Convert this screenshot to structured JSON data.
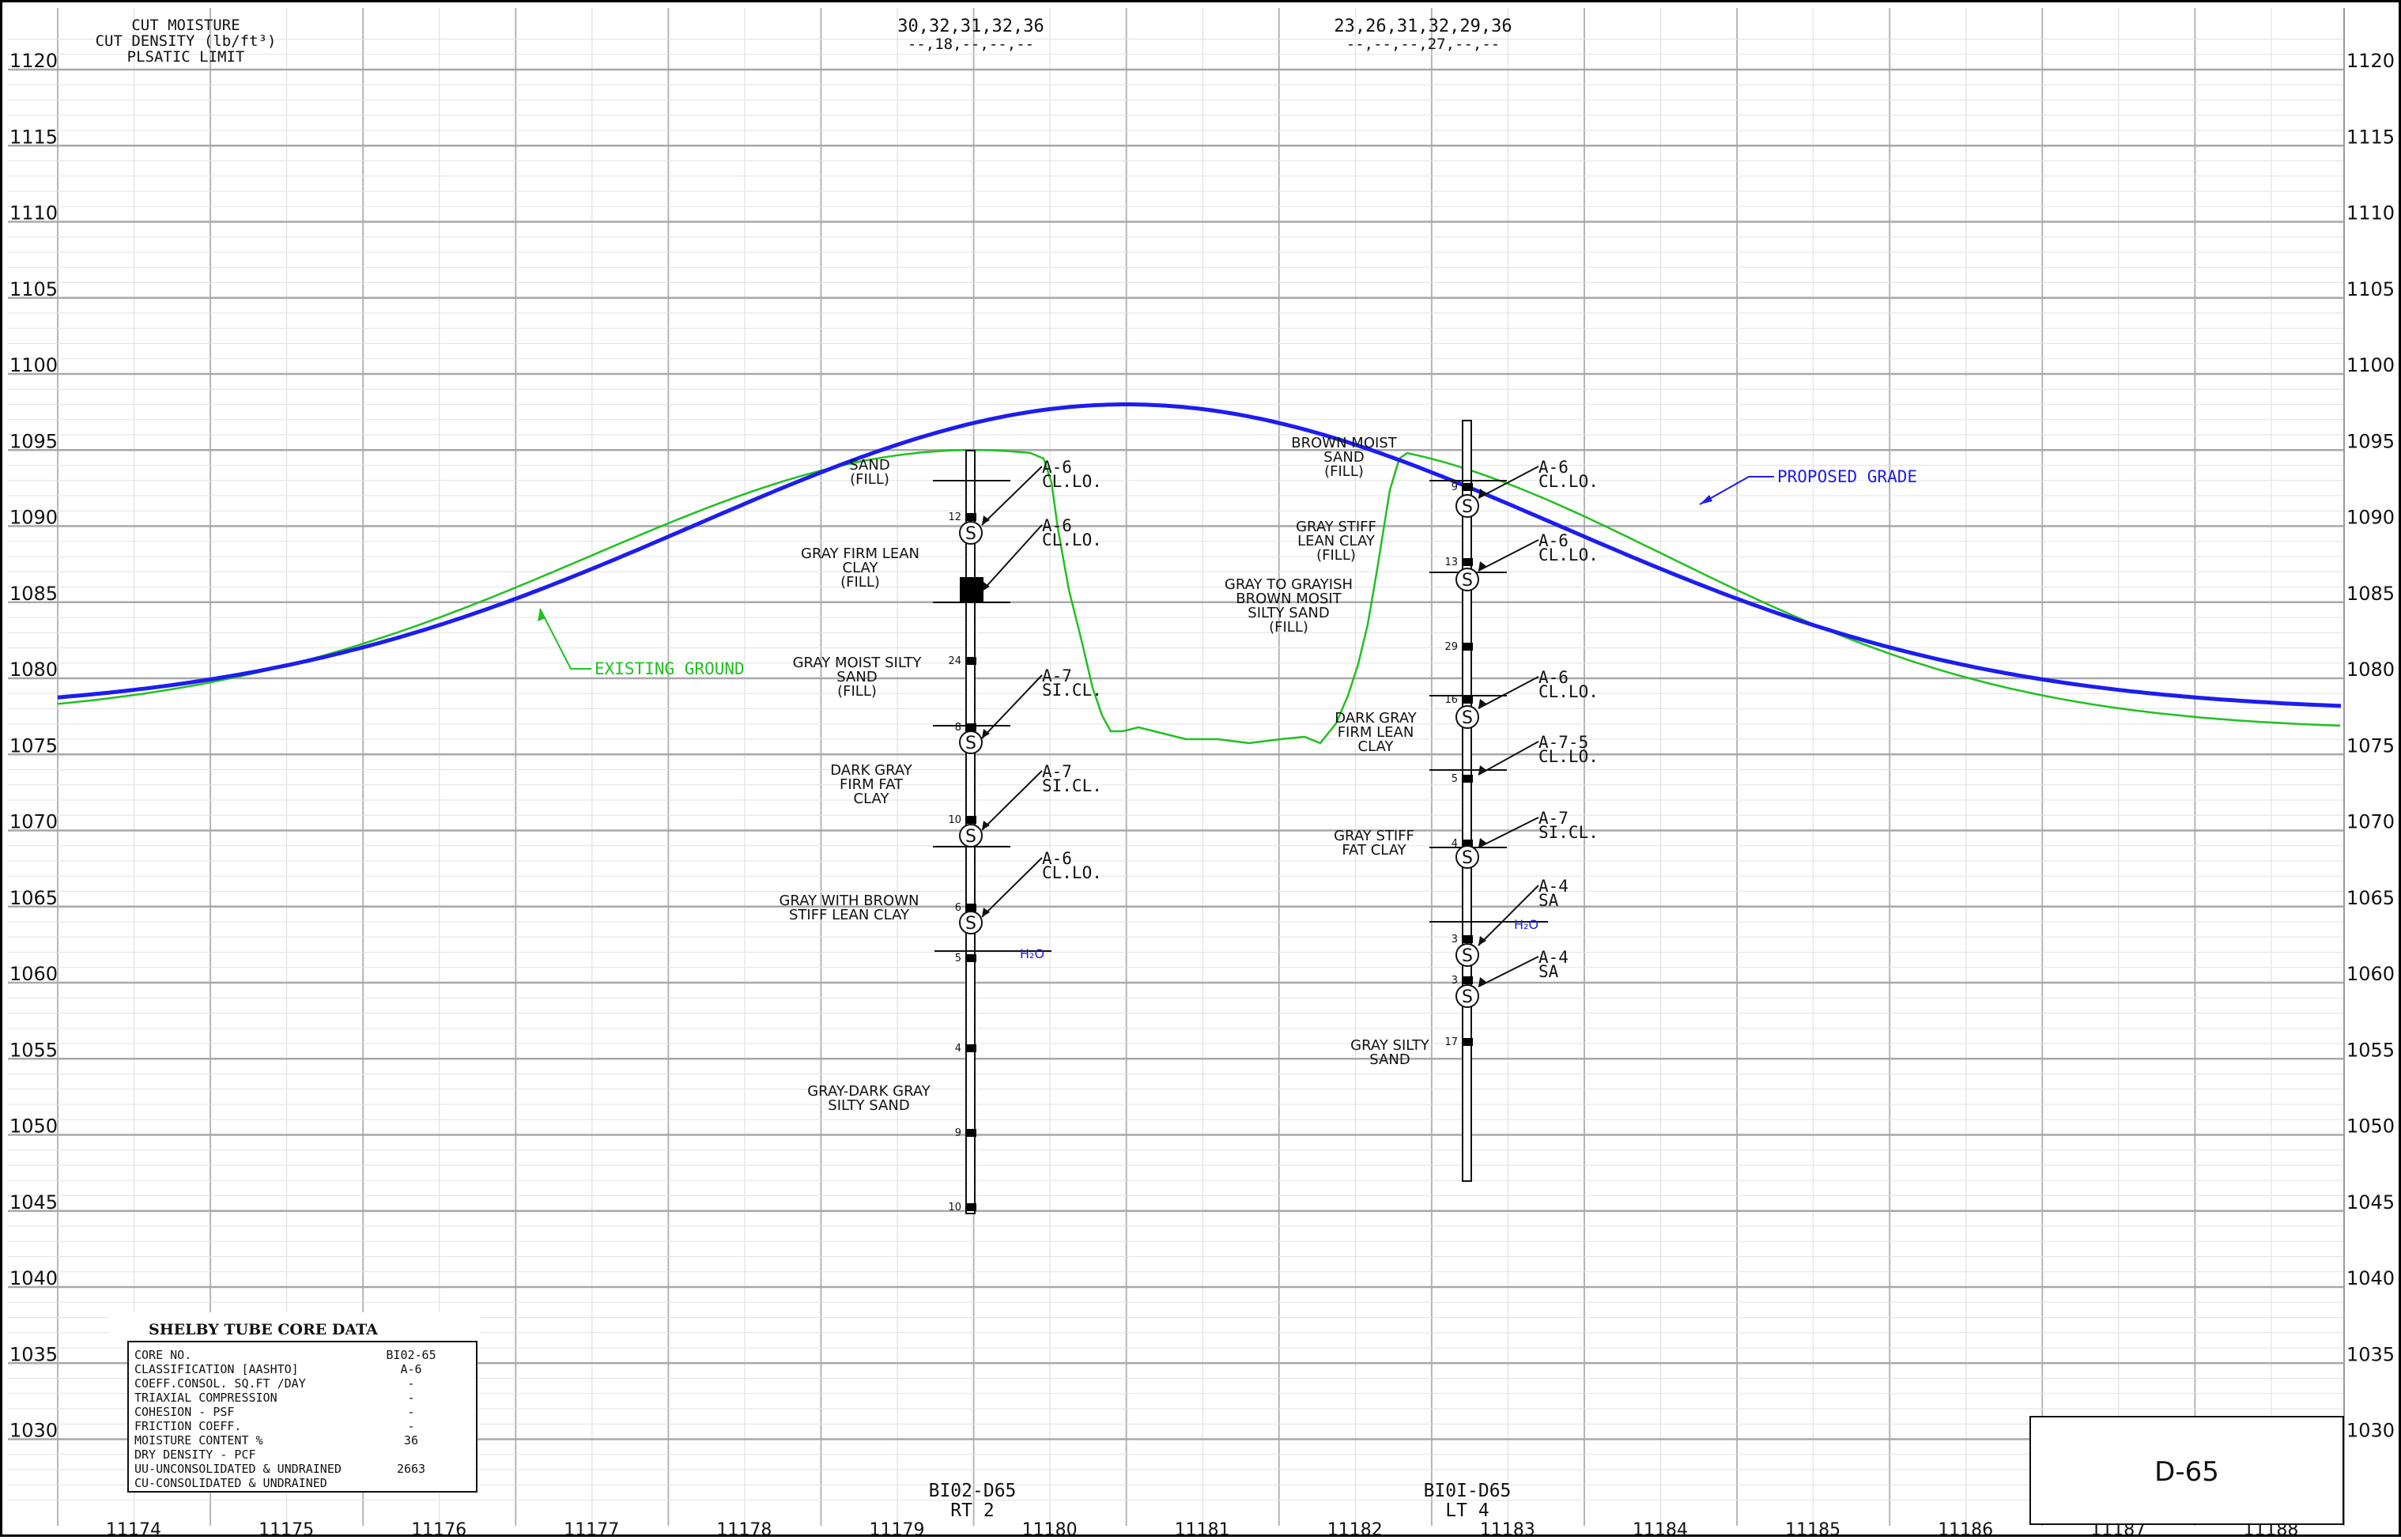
{
  "header": {
    "legend_lines": [
      "CUT MOISTURE",
      "CUT DENSITY (lb/ft³)",
      "PLSATIC LIMIT"
    ],
    "bore1_moisture": "30,32,31,32,36",
    "bore1_density": "--,18,--,--,--",
    "bore2_moisture": "23,26,31,32,29,36",
    "bore2_density": "--,--,--,27,--,--"
  },
  "axes": {
    "elevation_ticks": [
      1120,
      1115,
      1110,
      1105,
      1100,
      1095,
      1090,
      1085,
      1080,
      1075,
      1070,
      1065,
      1060,
      1055,
      1050,
      1045,
      1040,
      1035,
      1030
    ],
    "station_ticks": [
      11174,
      11175,
      11176,
      11177,
      11178,
      11179,
      11180,
      11181,
      11182,
      11183,
      11184,
      11185,
      11186,
      11187,
      11188
    ]
  },
  "lines": {
    "existing_ground_label": "EXISTING GROUND",
    "proposed_grade_label": "PROPOSED GRADE",
    "existing_color": "#20c020",
    "proposed_color": "#1d1df0"
  },
  "boring1": {
    "id": "BI02-D65",
    "offset": "RT 2",
    "blow_counts": [
      "12",
      "24",
      "8",
      "10",
      "6",
      "5",
      "4",
      "9",
      "10"
    ],
    "water_label": "H₂O",
    "layers": [
      {
        "lines": [
          "SAND",
          "(FILL)"
        ]
      },
      {
        "lines": [
          "GRAY FIRM LEAN",
          "CLAY",
          "(FILL)"
        ]
      },
      {
        "lines": [
          "GRAY MOIST SILTY",
          "SAND",
          "(FILL)"
        ]
      },
      {
        "lines": [
          "DARK GRAY",
          "FIRM FAT",
          "CLAY"
        ]
      },
      {
        "lines": [
          "GRAY WITH BROWN",
          "STIFF LEAN CLAY"
        ]
      },
      {
        "lines": [
          "GRAY-DARK GRAY",
          "SILTY SAND"
        ]
      }
    ],
    "classifications": [
      {
        "code": "A-6",
        "desc": "CL.LO."
      },
      {
        "code": "A-6",
        "desc": "CL.LO."
      },
      {
        "code": "A-7",
        "desc": "SI.CL."
      },
      {
        "code": "A-7",
        "desc": "SI.CL."
      },
      {
        "code": "A-6",
        "desc": "CL.LO."
      }
    ]
  },
  "boring2": {
    "id": "BI0I-D65",
    "offset": "LT 4",
    "blow_counts": [
      "9",
      "13",
      "29",
      "16",
      "5",
      "4",
      "3",
      "3",
      "17"
    ],
    "water_label": "H₂O",
    "layers": [
      {
        "lines": [
          "BROWN MOIST",
          "SAND",
          "(FILL)"
        ]
      },
      {
        "lines": [
          "GRAY STIFF",
          "LEAN CLAY",
          "(FILL)"
        ]
      },
      {
        "lines": [
          "GRAY TO GRAYISH",
          "BROWN MOSIT",
          "SILTY SAND",
          "(FILL)"
        ]
      },
      {
        "lines": [
          "DARK GRAY",
          "FIRM LEAN",
          "CLAY"
        ]
      },
      {
        "lines": [
          "GRAY STIFF",
          "FAT CLAY"
        ]
      },
      {
        "lines": [
          "GRAY SILTY",
          "SAND"
        ]
      }
    ],
    "classifications": [
      {
        "code": "A-6",
        "desc": "CL.LO."
      },
      {
        "code": "A-6",
        "desc": "CL.LO."
      },
      {
        "code": "A-6",
        "desc": "CL.LO."
      },
      {
        "code": "A-7-5",
        "desc": "CL.LO."
      },
      {
        "code": "A-7",
        "desc": "SI.CL."
      },
      {
        "code": "A-4",
        "desc": "SA"
      },
      {
        "code": "A-4",
        "desc": "SA"
      }
    ]
  },
  "sample_symbol": "S",
  "core_table": {
    "title": "SHELBY TUBE CORE DATA",
    "rows": [
      {
        "label": "CORE NO.",
        "value": "BI02-65"
      },
      {
        "label": "CLASSIFICATION [AASHTO]",
        "value": "A-6"
      },
      {
        "label": "COEFF.CONSOL. SQ.FT /DAY",
        "value": "-"
      },
      {
        "label": "TRIAXIAL COMPRESSION",
        "value": "-"
      },
      {
        "label": "COHESION - PSF",
        "value": "-"
      },
      {
        "label": "FRICTION COEFF.",
        "value": "-"
      },
      {
        "label": "MOISTURE CONTENT %",
        "value": "36"
      },
      {
        "label": "DRY DENSITY - PCF",
        "value": ""
      },
      {
        "label": "UU-UNCONSOLIDATED & UNDRAINED",
        "value": "2663"
      },
      {
        "label": "CU-CONSOLIDATED & UNDRAINED",
        "value": ""
      }
    ]
  },
  "sheet_label": "D-65"
}
